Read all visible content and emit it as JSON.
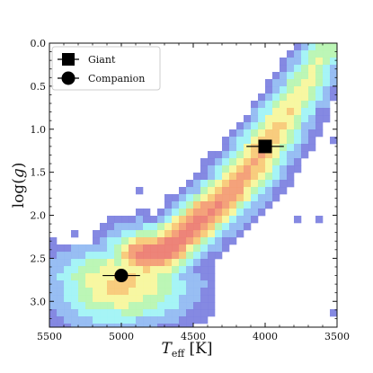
{
  "chart_data": {
    "type": "heatmap",
    "title": "",
    "xlabel": {
      "symbol": "T",
      "subscript": "eff",
      "unit": " [K]"
    },
    "ylabel": {
      "prefix": "log(",
      "symbol": "g",
      "suffix": ")"
    },
    "xlim": [
      5500,
      3500
    ],
    "ylim": [
      0.0,
      3.3
    ],
    "y_inverted": true,
    "x_inverted": true,
    "xticks": [
      5500,
      5000,
      4500,
      4000,
      3500
    ],
    "xtick_labels": [
      "5500",
      "5000",
      "4500",
      "4000",
      "3500"
    ],
    "yticks": [
      0.0,
      0.5,
      1.0,
      1.5,
      2.0,
      2.5,
      3.0
    ],
    "ytick_labels": [
      "0.0",
      "0.5",
      "1.0",
      "1.5",
      "2.0",
      "2.5",
      "3.0"
    ],
    "grid": false,
    "legend_position": "top-left",
    "colormap": [
      "#7b7fe0",
      "#8fb8f2",
      "#9ef3f5",
      "#b6f5b0",
      "#f6f69a",
      "#f7c873",
      "#f39a70",
      "#ec7a6e"
    ],
    "density_ridge": [
      {
        "teff": 3560,
        "logg": 0.0
      },
      {
        "teff": 3700,
        "logg": 0.4
      },
      {
        "teff": 3850,
        "logg": 0.8
      },
      {
        "teff": 4000,
        "logg": 1.2
      },
      {
        "teff": 4150,
        "logg": 1.55
      },
      {
        "teff": 4350,
        "logg": 1.9
      },
      {
        "teff": 4550,
        "logg": 2.2
      },
      {
        "teff": 4750,
        "logg": 2.45
      }
    ],
    "red_clump": {
      "teff": 4800,
      "logg": 2.45
    },
    "points": [
      {
        "name": "Giant",
        "marker": "square",
        "teff": 4000,
        "logg": 1.2,
        "teff_err": 130,
        "logg_err": 0.05
      },
      {
        "name": "Companion",
        "marker": "circle",
        "teff": 5000,
        "logg": 2.7,
        "teff_err": 130,
        "logg_err": 0.05
      }
    ]
  }
}
